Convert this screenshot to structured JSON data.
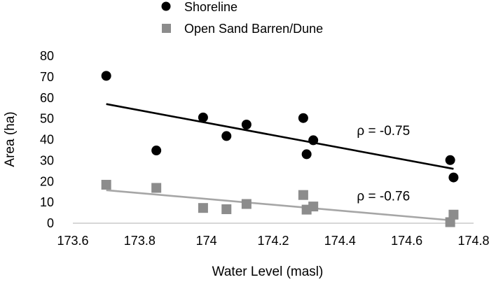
{
  "chart_data": {
    "type": "scatter",
    "title": "",
    "xlabel": "Water Level (masl)",
    "ylabel": "Area (ha)",
    "xlim": [
      173.6,
      174.8
    ],
    "ylim": [
      0,
      80
    ],
    "x_ticks": [
      "173.6",
      "173.8",
      "174",
      "174.2",
      "174.4",
      "174.6",
      "174.8"
    ],
    "y_ticks": [
      "0",
      "10",
      "20",
      "30",
      "40",
      "50",
      "60",
      "70",
      "80"
    ],
    "grid": false,
    "legend_position": "top",
    "series": [
      {
        "name": "Shoreline",
        "marker": "circle",
        "color": "#000000",
        "points": [
          {
            "x": 173.7,
            "y": 70.5
          },
          {
            "x": 173.85,
            "y": 34.8
          },
          {
            "x": 173.99,
            "y": 50.6
          },
          {
            "x": 174.06,
            "y": 41.7
          },
          {
            "x": 174.12,
            "y": 47.2
          },
          {
            "x": 174.29,
            "y": 50.3
          },
          {
            "x": 174.3,
            "y": 33.0
          },
          {
            "x": 174.32,
            "y": 39.7
          },
          {
            "x": 174.73,
            "y": 30.2
          },
          {
            "x": 174.74,
            "y": 21.9
          }
        ],
        "trendline": {
          "x": [
            173.7,
            174.74
          ],
          "y": [
            57.0,
            26.0
          ],
          "color": "#000000"
        },
        "annotation": {
          "text": "ρ = -0.75",
          "x": 174.53,
          "y": 44.5
        }
      },
      {
        "name": "Open Sand Barren/Dune",
        "marker": "square",
        "color": "#8c8c8c",
        "points": [
          {
            "x": 173.7,
            "y": 18.4
          },
          {
            "x": 173.85,
            "y": 16.9
          },
          {
            "x": 173.99,
            "y": 7.3
          },
          {
            "x": 174.06,
            "y": 6.7
          },
          {
            "x": 174.12,
            "y": 9.2
          },
          {
            "x": 174.29,
            "y": 13.5
          },
          {
            "x": 174.3,
            "y": 6.5
          },
          {
            "x": 174.32,
            "y": 8.0
          },
          {
            "x": 174.73,
            "y": 0.5
          },
          {
            "x": 174.74,
            "y": 4.1
          }
        ],
        "trendline": {
          "x": [
            173.7,
            174.74
          ],
          "y": [
            15.8,
            1.3
          ],
          "color": "#a6a6a6"
        },
        "annotation": {
          "text": "ρ = -0.76",
          "x": 174.53,
          "y": 13.3
        }
      }
    ]
  }
}
